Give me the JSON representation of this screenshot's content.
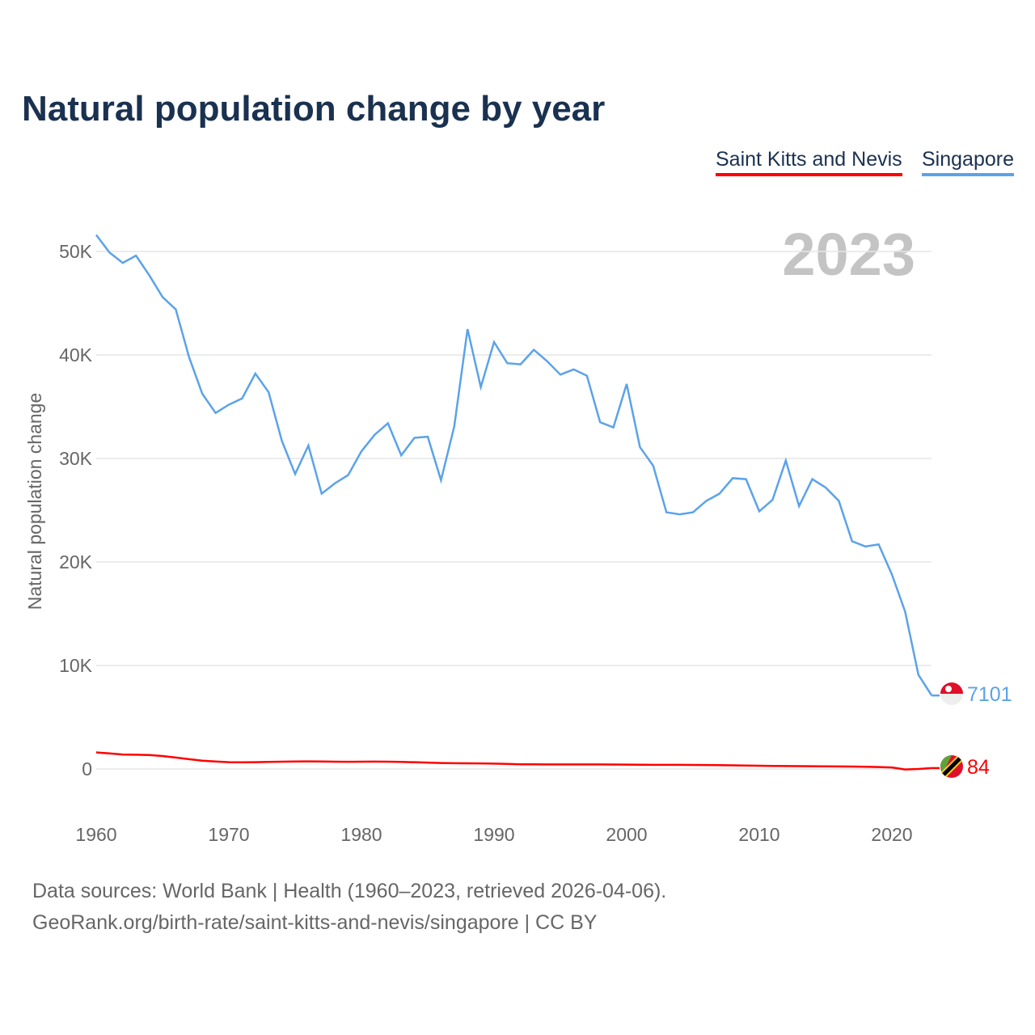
{
  "title": "Natural population change by year",
  "footer": {
    "line1": "Data sources: World Bank | Health (1960–2023, retrieved 2026-04-06).",
    "line2": "GeoRank.org/birth-rate/saint-kitts-and-nevis/singapore | CC BY"
  },
  "chart_data": {
    "type": "line",
    "title": "Natural population change by year",
    "ylabel": "Natural population change",
    "xlabel": "",
    "year_label": "2023",
    "ylim": [
      -5000,
      55000
    ],
    "xlim": [
      1960,
      2023
    ],
    "yticks": [
      0,
      10000,
      20000,
      30000,
      40000,
      50000
    ],
    "ytick_labels": [
      "0",
      "10K",
      "20K",
      "30K",
      "40K",
      "50K"
    ],
    "xticks": [
      1960,
      1970,
      1980,
      1990,
      2000,
      2010,
      2020
    ],
    "xtick_labels": [
      "1960",
      "1970",
      "1980",
      "1990",
      "2000",
      "2010",
      "2020"
    ],
    "grid": true,
    "legend_placement": "top-right",
    "x": [
      1960,
      1961,
      1962,
      1963,
      1964,
      1965,
      1966,
      1967,
      1968,
      1969,
      1970,
      1971,
      1972,
      1973,
      1974,
      1975,
      1976,
      1977,
      1978,
      1979,
      1980,
      1981,
      1982,
      1983,
      1984,
      1985,
      1986,
      1987,
      1988,
      1989,
      1990,
      1991,
      1992,
      1993,
      1994,
      1995,
      1996,
      1997,
      1998,
      1999,
      2000,
      2001,
      2002,
      2003,
      2004,
      2005,
      2006,
      2007,
      2008,
      2009,
      2010,
      2011,
      2012,
      2013,
      2014,
      2015,
      2016,
      2017,
      2018,
      2019,
      2020,
      2021,
      2022,
      2023
    ],
    "series": [
      {
        "name": "Saint Kitts and Nevis",
        "color": "#ff0000",
        "end_label": "84",
        "values": [
          1600,
          1500,
          1400,
          1380,
          1350,
          1250,
          1100,
          950,
          800,
          720,
          650,
          640,
          650,
          680,
          700,
          720,
          730,
          720,
          700,
          690,
          700,
          710,
          700,
          680,
          650,
          620,
          580,
          560,
          550,
          540,
          520,
          490,
          450,
          450,
          440,
          440,
          440,
          440,
          440,
          430,
          420,
          410,
          400,
          400,
          400,
          390,
          380,
          370,
          350,
          330,
          310,
          290,
          280,
          270,
          260,
          250,
          240,
          230,
          210,
          190,
          150,
          -50,
          0,
          84
        ]
      },
      {
        "name": "Singapore",
        "color": "#5ba3e8",
        "end_label": "7101",
        "values": [
          51600,
          49900,
          48900,
          49600,
          47700,
          45600,
          44400,
          39800,
          36250,
          34400,
          35200,
          35800,
          38200,
          36400,
          31700,
          28500,
          31250,
          26600,
          27600,
          28400,
          30700,
          32300,
          33400,
          30300,
          32000,
          32100,
          27900,
          33100,
          42500,
          36900,
          41250,
          39200,
          39100,
          40500,
          39400,
          38100,
          38600,
          38000,
          33500,
          33000,
          37200,
          31100,
          29300,
          24800,
          24600,
          24800,
          25900,
          26600,
          28100,
          28000,
          24900,
          26000,
          29800,
          25400,
          28000,
          27200,
          25900,
          22000,
          21500,
          21700,
          18800,
          15200,
          9100,
          7101
        ]
      }
    ]
  }
}
